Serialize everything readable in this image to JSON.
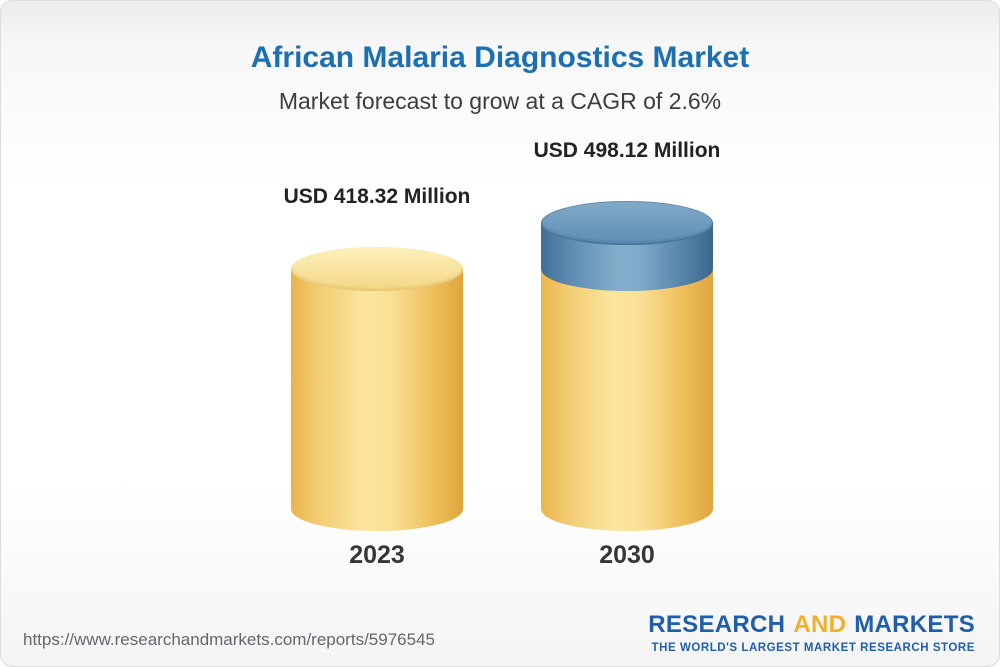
{
  "chart_data": {
    "type": "bar",
    "style": "3d-cylinder",
    "title": "African Malaria Diagnostics Market",
    "subtitle": "Market forecast to grow at a CAGR of 2.6%",
    "cagr_pct": 2.6,
    "unit": "USD Million",
    "categories": [
      "2023",
      "2030"
    ],
    "values": [
      418.32,
      498.12
    ],
    "value_labels": [
      "USD 418.32 Million",
      "USD 498.12 Million"
    ],
    "legend": "none",
    "bars": [
      {
        "category": "2023",
        "value": 418.32,
        "label": "USD 418.32 Million",
        "segments": [
          {
            "name": "base",
            "value": 418.32,
            "color": "#F2C255"
          }
        ]
      },
      {
        "category": "2030",
        "value": 498.12,
        "label": "USD 498.12 Million",
        "segments": [
          {
            "name": "base",
            "value": 418.32,
            "color": "#F2C255"
          },
          {
            "name": "growth",
            "value": 79.8,
            "color": "#5D8DB3"
          }
        ]
      }
    ],
    "colors": {
      "bar_yellow": "#F2C255",
      "bar_blue": "#5D8DB3",
      "title_blue": "#1D6FB4"
    }
  },
  "footer": {
    "url": "https://www.researchandmarkets.com/reports/5976545",
    "logo": {
      "word1": "RESEARCH",
      "word2": "AND",
      "word3": "MARKETS",
      "tagline": "THE WORLD'S LARGEST MARKET RESEARCH STORE"
    }
  }
}
